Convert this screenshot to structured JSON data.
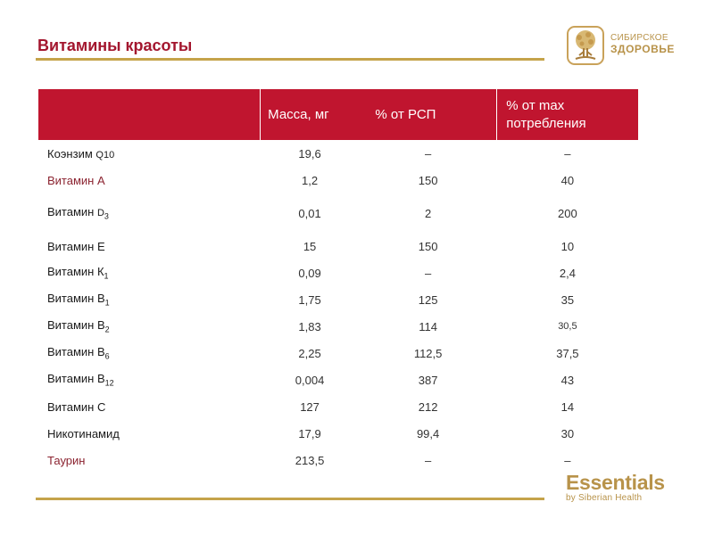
{
  "title": "Витамины красоты",
  "logo_top": {
    "line1": "СИБИРСКОЕ",
    "line2": "ЗДОРОВЬЕ"
  },
  "logo_bottom": {
    "brand": "Essentials",
    "sub": "by Siberian Health"
  },
  "colors": {
    "accent": "#c0152f",
    "gold": "#c5a34a",
    "title": "#a3162e"
  },
  "table": {
    "headers": [
      "",
      "Масса, мг",
      "% от РСП",
      "% от max потребления"
    ],
    "rows": [
      {
        "name": "Коэнзим ",
        "name_small": "Q10",
        "sub": "",
        "mass": "19,6",
        "rsp": "–",
        "max": "–"
      },
      {
        "name": "Витамин А",
        "name_small": "",
        "sub": "",
        "mass": "1,2",
        "rsp": "150",
        "max": "40"
      },
      {
        "name": "Витамин ",
        "name_small": "D",
        "sub": "3",
        "mass": "0,01",
        "rsp": "2",
        "max": "200"
      },
      {
        "name": "Витамин Е",
        "name_small": "",
        "sub": "",
        "mass": "15",
        "rsp": "150",
        "max": "10"
      },
      {
        "name": "Витамин К",
        "name_small": "",
        "sub": "1",
        "mass": "0,09",
        "rsp": "–",
        "max": "2,4"
      },
      {
        "name": "Витамин В",
        "name_small": "",
        "sub": "1",
        "mass": "1,75",
        "rsp": "125",
        "max": "35"
      },
      {
        "name": "Витамин В",
        "name_small": "",
        "sub": "2",
        "mass": "1,83",
        "rsp": "114",
        "max": "30,5"
      },
      {
        "name": "Витамин В",
        "name_small": "",
        "sub": "6",
        "mass": "2,25",
        "rsp": "112,5",
        "max": "37,5"
      },
      {
        "name": "Витамин В",
        "name_small": "",
        "sub": "12",
        "mass": "0,004",
        "rsp": "387",
        "max": "43"
      },
      {
        "name": "Витамин С",
        "name_small": "",
        "sub": "",
        "mass": "127",
        "rsp": "212",
        "max": "14"
      },
      {
        "name": "Никотинамид",
        "name_small": "",
        "sub": "",
        "mass": "17,9",
        "rsp": "99,4",
        "max": "30"
      },
      {
        "name": "Таурин",
        "name_small": "",
        "sub": "",
        "mass": "213,5",
        "rsp": "–",
        "max": "–"
      }
    ]
  }
}
